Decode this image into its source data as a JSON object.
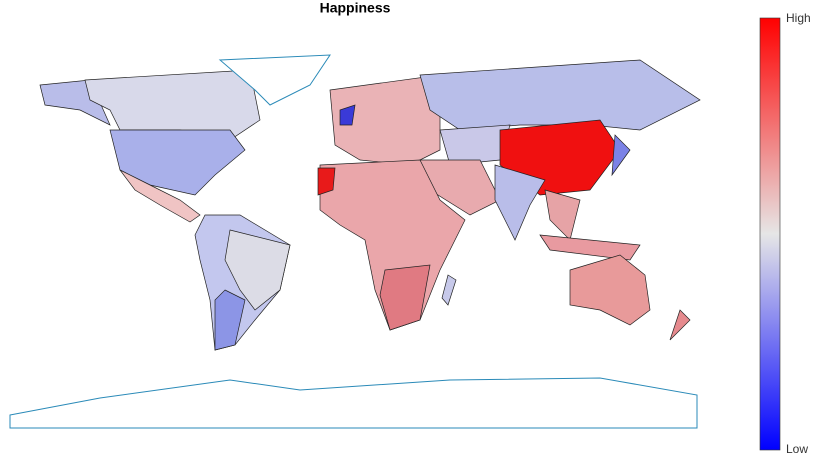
{
  "title": "Happiness",
  "colorbar": {
    "high": "High",
    "low": "Low"
  }
}
